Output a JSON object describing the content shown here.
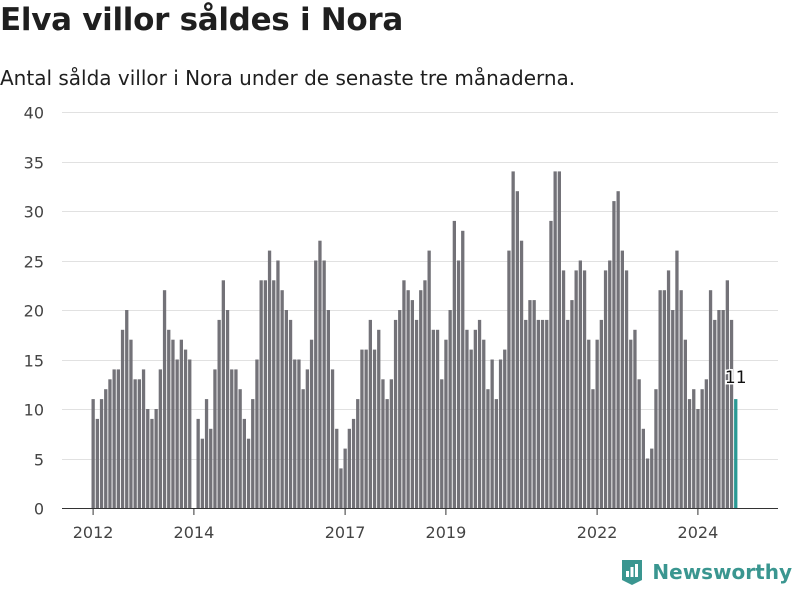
{
  "header": {
    "title": "Elva villor såldes i Nora",
    "subtitle": "Antal sålda villor i Nora under de senaste tre månaderna."
  },
  "brand": {
    "name": "Newsworthy",
    "icon": "chart-icon",
    "color": "#3a9690"
  },
  "chart_data": {
    "type": "bar",
    "title": "Elva villor såldes i Nora",
    "subtitle": "Antal sålda villor i Nora under de senaste tre månaderna.",
    "xlabel": "",
    "ylabel": "",
    "ylim": [
      0,
      40
    ],
    "yticks": [
      0,
      5,
      10,
      15,
      20,
      25,
      30,
      35,
      40
    ],
    "xticks": [
      "2012",
      "2014",
      "2017",
      "2019",
      "2022",
      "2024"
    ],
    "grid": true,
    "bar_color": "#737278",
    "highlight_color": "#2a9994",
    "highlight_label": "11",
    "x_start": "2012-01",
    "x_interval": "month",
    "values": [
      11,
      9,
      11,
      12,
      13,
      14,
      14,
      18,
      20,
      17,
      13,
      13,
      14,
      10,
      9,
      10,
      14,
      22,
      18,
      17,
      15,
      17,
      16,
      15,
      0,
      9,
      7,
      11,
      8,
      14,
      19,
      23,
      20,
      14,
      14,
      12,
      9,
      7,
      11,
      15,
      23,
      23,
      26,
      23,
      25,
      22,
      20,
      19,
      15,
      15,
      12,
      14,
      17,
      25,
      27,
      25,
      20,
      14,
      8,
      4,
      6,
      8,
      9,
      11,
      16,
      16,
      19,
      16,
      18,
      13,
      11,
      13,
      19,
      20,
      23,
      22,
      21,
      19,
      22,
      23,
      26,
      18,
      18,
      13,
      17,
      20,
      29,
      25,
      28,
      18,
      16,
      18,
      19,
      17,
      12,
      15,
      11,
      15,
      16,
      26,
      34,
      32,
      27,
      19,
      21,
      21,
      19,
      19,
      19,
      29,
      34,
      34,
      24,
      19,
      21,
      24,
      25,
      24,
      17,
      12,
      17,
      19,
      24,
      25,
      31,
      32,
      26,
      24,
      17,
      18,
      13,
      8,
      5,
      6,
      12,
      22,
      22,
      24,
      20,
      26,
      22,
      17,
      11,
      12,
      10,
      12,
      13,
      22,
      19,
      20,
      20,
      23,
      19,
      11
    ]
  }
}
